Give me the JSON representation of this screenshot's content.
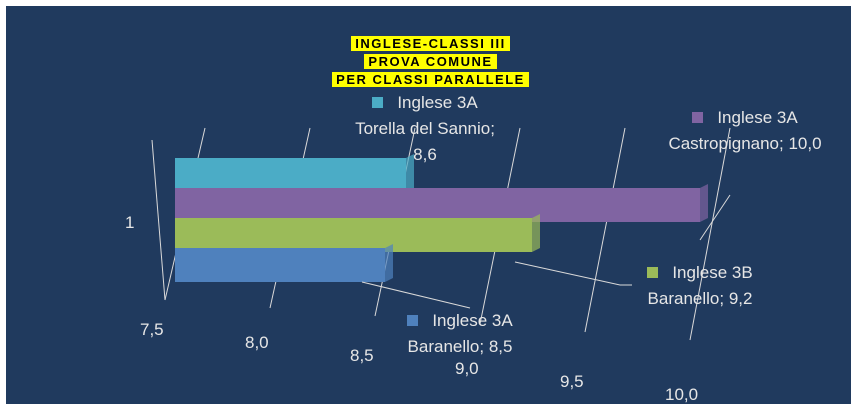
{
  "chart_data": {
    "type": "bar",
    "orientation": "horizontal",
    "title_lines": [
      "INGLESE-CLASSI III",
      "PROVA COMUNE",
      "PER CLASSI PARALLELE"
    ],
    "categories": [
      "1"
    ],
    "series": [
      {
        "color": "#4bacc6",
        "values": [
          8.6
        ],
        "value_labels": [
          "Inglese 3A Torella del Sannio; 8,6"
        ]
      },
      {
        "color": "#8064a2",
        "values": [
          10.0
        ],
        "value_labels": [
          "Inglese 3A Castropignano; 10,0"
        ]
      },
      {
        "color": "#9bbb59",
        "values": [
          9.2
        ],
        "value_labels": [
          "Inglese 3B Baranello; 9,2"
        ]
      },
      {
        "color": "#4f81bd",
        "values": [
          8.5
        ],
        "value_labels": [
          "Inglese 3A Baranello; 8,5"
        ]
      }
    ],
    "xlim": [
      7.5,
      10.0
    ],
    "xticks": [
      {
        "value": 7.5,
        "label": "7,5"
      },
      {
        "value": 8.0,
        "label": "8,0"
      },
      {
        "value": 8.5,
        "label": "8,5"
      },
      {
        "value": 9.0,
        "label": "9,0"
      },
      {
        "value": 9.5,
        "label": "9,5"
      },
      {
        "value": 10.0,
        "label": "10,0"
      }
    ],
    "grid": true
  }
}
